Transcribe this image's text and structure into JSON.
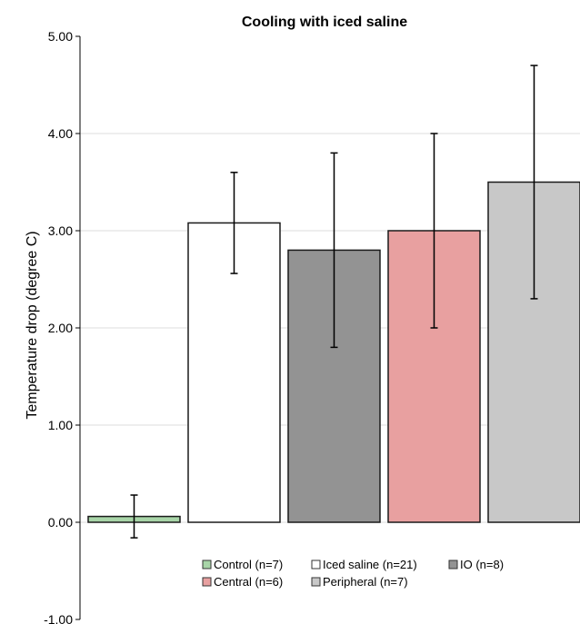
{
  "chart_data": {
    "type": "bar",
    "title": "Cooling with iced saline",
    "xlabel": "",
    "ylabel": "Temperature drop (degree C)",
    "ylim": [
      -1.0,
      5.0
    ],
    "yticks": [
      "-1.00",
      "0.00",
      "1.00",
      "2.00",
      "3.00",
      "4.00",
      "5.00"
    ],
    "grid": true,
    "legend_position": "bottom-center",
    "series": [
      {
        "name": "Control (n=7)",
        "value": 0.06,
        "error_low": -0.16,
        "error_high": 0.28,
        "color": "#a8d5a8"
      },
      {
        "name": "Iced saline (n=21)",
        "value": 3.08,
        "error_low": 2.56,
        "error_high": 3.6,
        "color": "#ffffff"
      },
      {
        "name": "IO (n=8)",
        "value": 2.8,
        "error_low": 1.8,
        "error_high": 3.8,
        "color": "#939393"
      },
      {
        "name": "Central (n=6)",
        "value": 3.0,
        "error_low": 2.0,
        "error_high": 4.0,
        "color": "#e8a0a0"
      },
      {
        "name": "Peripheral (n=7)",
        "value": 3.5,
        "error_low": 2.3,
        "error_high": 4.7,
        "color": "#c8c8c8"
      }
    ]
  }
}
